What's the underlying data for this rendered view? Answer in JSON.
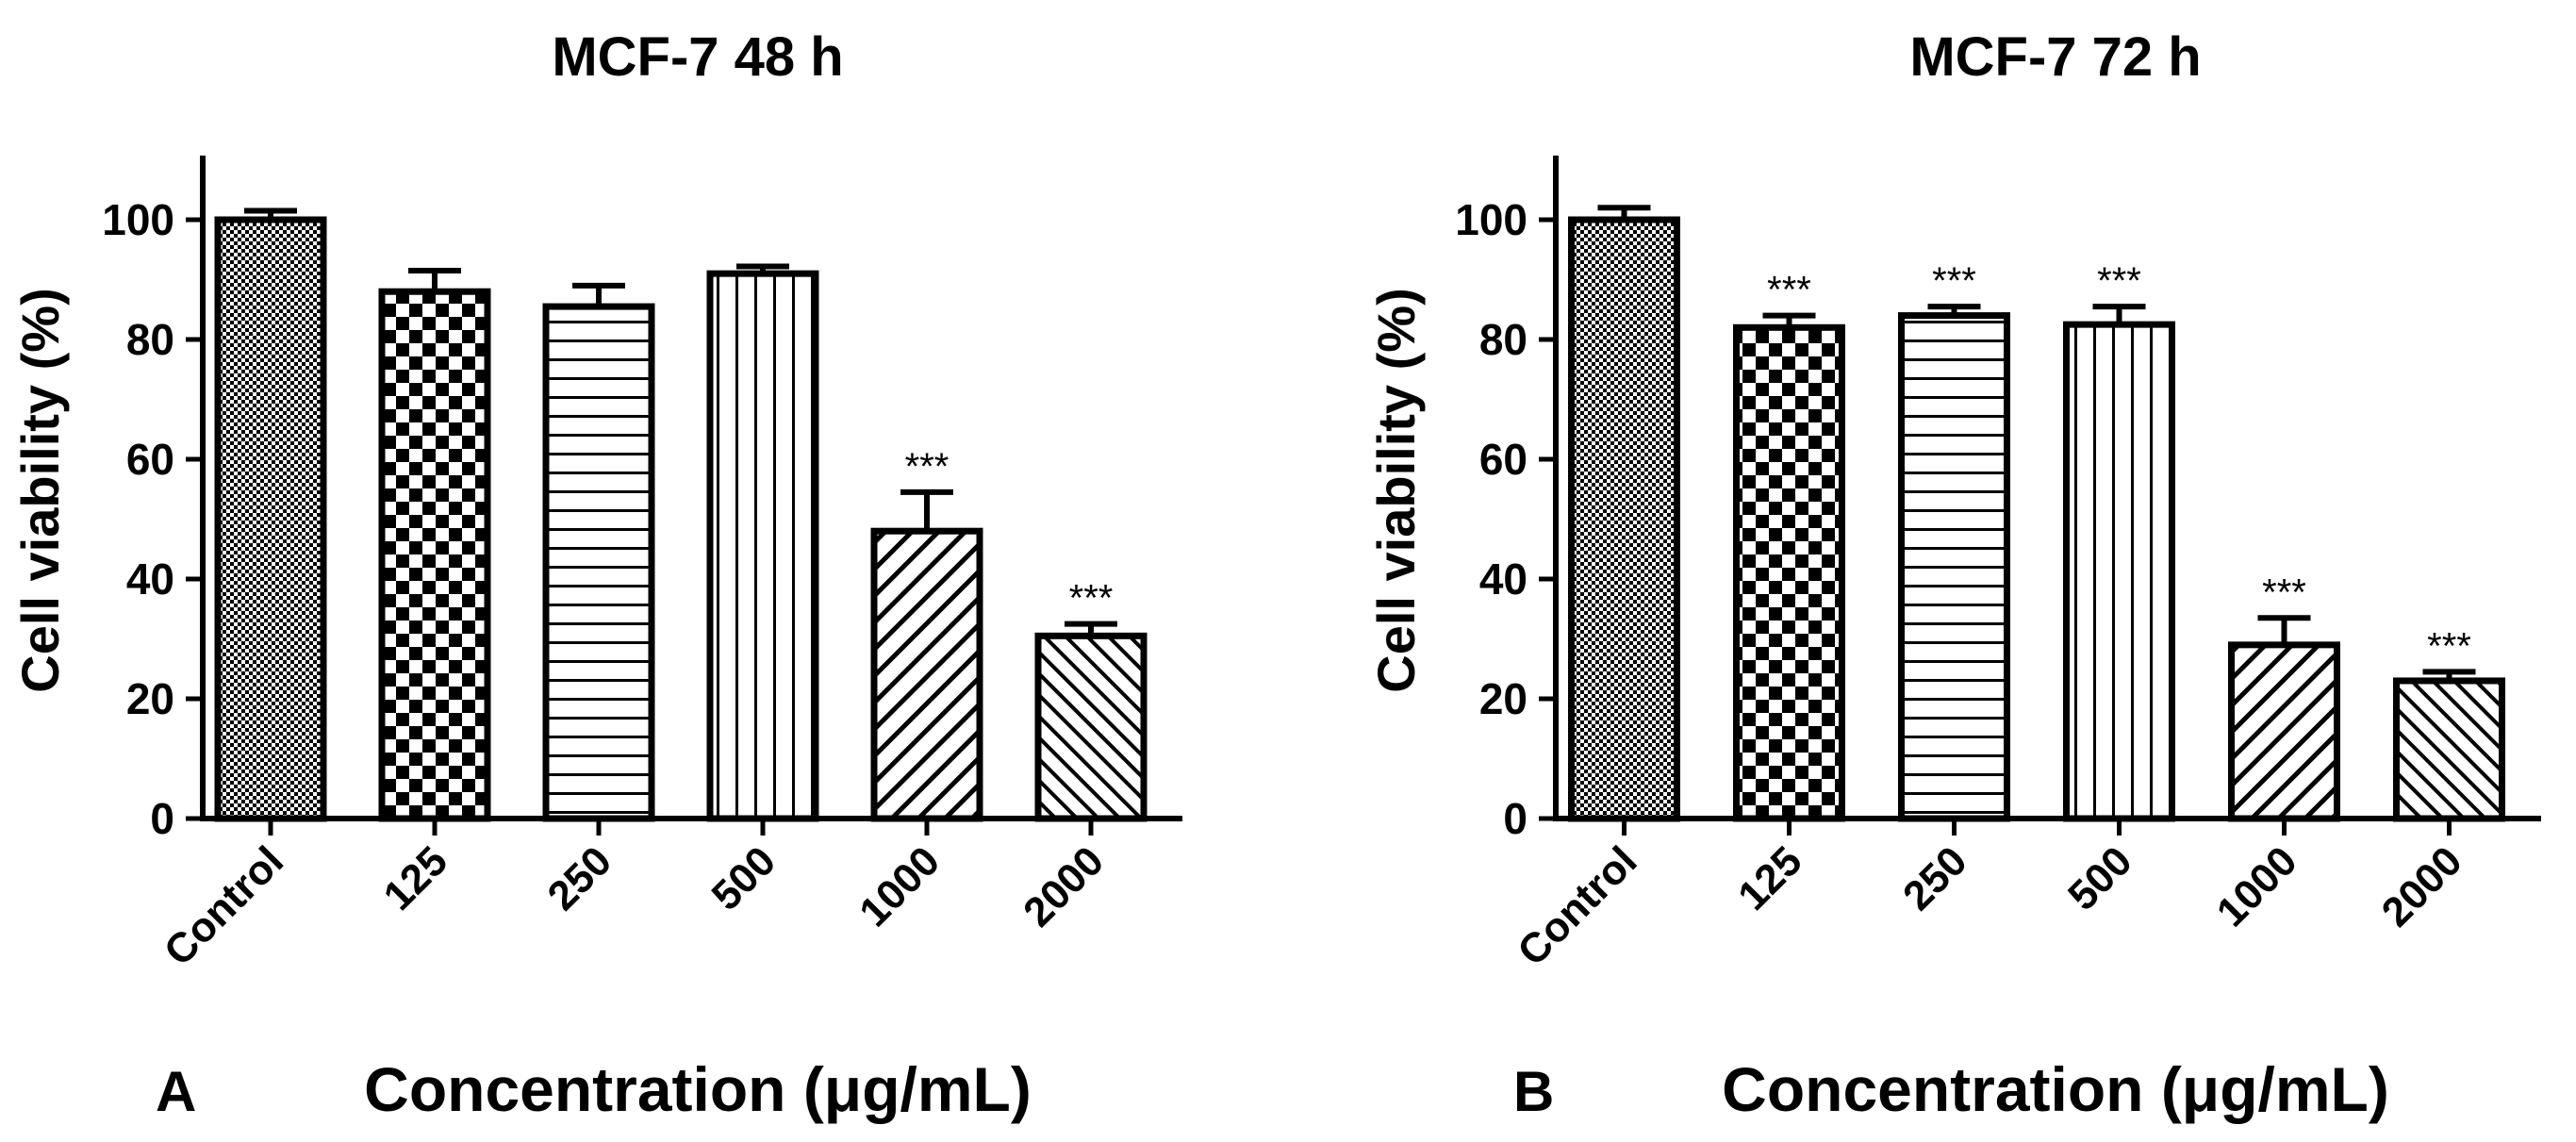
{
  "chart_data": [
    {
      "panel_label": "A",
      "type": "bar",
      "title": "MCF-7 48 h",
      "xlabel": "Concentration (μg/mL)",
      "ylabel": "Cell viability (%)",
      "ylim": [
        0,
        110
      ],
      "yticks": [
        "0",
        "20",
        "40",
        "60",
        "80",
        "100"
      ],
      "categories": [
        "Control",
        "125",
        "250",
        "500",
        "1000",
        "2000"
      ],
      "values": [
        100,
        88,
        85.5,
        91,
        48,
        30.5
      ],
      "errors": [
        1.5,
        3.5,
        3.5,
        1.2,
        6.5,
        2
      ],
      "significance": [
        "",
        "",
        "",
        "",
        "***",
        "***"
      ],
      "patterns": [
        "dots",
        "checker",
        "hlines",
        "vlines",
        "diag-up",
        "diag-down"
      ]
    },
    {
      "panel_label": "B",
      "type": "bar",
      "title": "MCF-7 72 h",
      "xlabel": "Concentration (μg/mL)",
      "ylabel": "Cell viability (%)",
      "ylim": [
        0,
        110
      ],
      "yticks": [
        "0",
        "20",
        "40",
        "60",
        "80",
        "100"
      ],
      "categories": [
        "Control",
        "125",
        "250",
        "500",
        "1000",
        "2000"
      ],
      "values": [
        100,
        82,
        84,
        82.5,
        29,
        23
      ],
      "errors": [
        2,
        2,
        1.5,
        3,
        4.5,
        1.5
      ],
      "significance": [
        "",
        "***",
        "***",
        "***",
        "***",
        "***"
      ],
      "patterns": [
        "dots",
        "checker",
        "hlines",
        "vlines",
        "diag-up",
        "diag-down"
      ]
    }
  ]
}
